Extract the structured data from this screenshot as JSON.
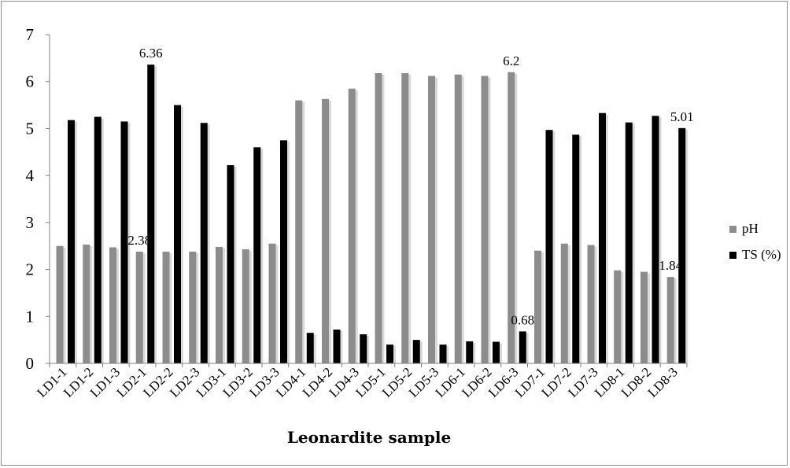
{
  "chart_data": {
    "type": "bar",
    "xlabel": "Leonardite sample",
    "ylabel": "",
    "ylim": [
      0,
      7
    ],
    "yticks": [
      "0",
      "1",
      "2",
      "3",
      "4",
      "5",
      "6",
      "7"
    ],
    "grid": false,
    "legend_position": "right",
    "categories": [
      "LD1-1",
      "LD1-2",
      "LD1-3",
      "LD2-1",
      "LD2-2",
      "LD2-3",
      "LD3-1",
      "LD3-2",
      "LD3-3",
      "LD4-1",
      "LD4-2",
      "LD4-3",
      "LD5-1",
      "LD5-2",
      "LD5-3",
      "LD6-1",
      "LD6-2",
      "LD6-3",
      "LD7-1",
      "LD7-2",
      "LD7-3",
      "LD8-1",
      "LD8-2",
      "LD8-3"
    ],
    "series": [
      {
        "name": "pH",
        "color": "#8c8c8c",
        "values": [
          2.5,
          2.53,
          2.47,
          2.38,
          2.38,
          2.38,
          2.48,
          2.43,
          2.55,
          5.6,
          5.63,
          5.85,
          6.18,
          6.18,
          6.12,
          6.15,
          6.12,
          6.2,
          2.4,
          2.55,
          2.52,
          1.98,
          1.95,
          1.84
        ]
      },
      {
        "name": "TS (%)",
        "color": "#000000",
        "values": [
          5.18,
          5.25,
          5.15,
          6.36,
          5.5,
          5.12,
          4.22,
          4.6,
          4.75,
          0.65,
          0.72,
          0.62,
          0.4,
          0.5,
          0.4,
          0.47,
          0.46,
          0.68,
          4.97,
          4.87,
          5.33,
          5.13,
          5.27,
          5.01
        ]
      }
    ],
    "annotations": [
      {
        "text": "6.36",
        "series": 1,
        "index": 3
      },
      {
        "text": "2.38",
        "series": 0,
        "index": 3
      },
      {
        "text": "6.2",
        "series": 0,
        "index": 17
      },
      {
        "text": "0.68",
        "series": 1,
        "index": 17
      },
      {
        "text": "5.01",
        "series": 1,
        "index": 23
      },
      {
        "text": "1.84",
        "series": 0,
        "index": 23
      }
    ]
  }
}
